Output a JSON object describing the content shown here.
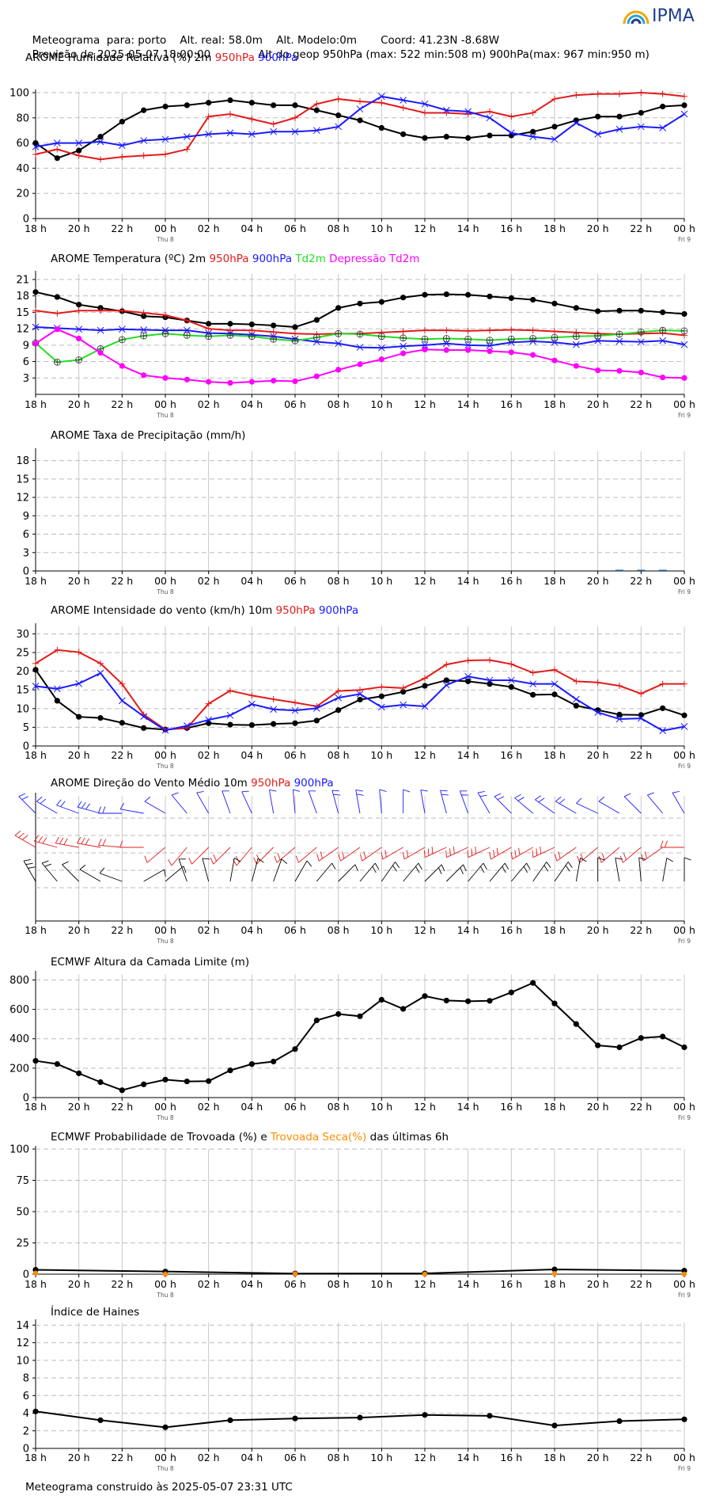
{
  "header": {
    "line1": {
      "label": "Meteograma  para: porto",
      "alt_real": "Alt. real: 58.0m",
      "alt_model": "Alt. Modelo:0m",
      "coord": "Coord: 41.23N -8.68W"
    },
    "line2": {
      "forecast": "Previsão de 2025-05-07 18:00:00",
      "geop": "Alt do geop 950hPa (max: 522 min:508 m) 900hPa(max: 967 min:950 m)"
    }
  },
  "logo": {
    "text": "IPMA"
  },
  "footer": "Meteograma construido às 2025-05-07 23:31 UTC",
  "colors": {
    "black": "#000000",
    "red": "#e41a1a",
    "blue": "#1a1aff",
    "green": "#22dd22",
    "magenta": "#ff00ff",
    "orange": "#ff8c00"
  },
  "time_axis": {
    "ticks": [
      "18 h",
      "20 h",
      "22 h",
      "00 h",
      "02 h",
      "04 h",
      "06 h",
      "08 h",
      "10 h",
      "12 h",
      "14 h",
      "16 h",
      "18 h",
      "20 h",
      "22 h",
      "00 h"
    ],
    "day_labels": [
      {
        "at": "00 h",
        "text": "Thu 8"
      },
      {
        "at": "00 h",
        "text": "Fri 9"
      }
    ],
    "start": "2025-05-07 18:00",
    "end": "2025-05-09 00:00"
  },
  "chart_data": [
    {
      "type": "line",
      "title_parts": [
        {
          "text": "AROME Humidade Relativa (%)  2m  ",
          "color": "#000000"
        },
        {
          "text": "950hPa",
          "color": "#e41a1a"
        },
        {
          "text": "  ",
          "color": "#000000"
        },
        {
          "text": "900hPa",
          "color": "#1a1aff"
        }
      ],
      "ylim": [
        0,
        100
      ],
      "yticks": [
        0,
        20,
        40,
        60,
        80,
        100
      ],
      "x_hours": [
        0,
        1,
        2,
        3,
        4,
        5,
        6,
        7,
        8,
        9,
        10,
        11,
        12,
        13,
        14,
        15,
        16,
        17,
        18,
        19,
        20,
        21,
        22,
        23,
        24,
        25,
        26,
        27,
        28,
        29,
        30
      ],
      "series": [
        {
          "name": "2m",
          "color": "#000000",
          "marker": "dot",
          "values": [
            60,
            48,
            54,
            65,
            77,
            86,
            89,
            90,
            92,
            94,
            92,
            90,
            90,
            86,
            82,
            78,
            72,
            67,
            64,
            65,
            64,
            66,
            66,
            69,
            73,
            78,
            81,
            81,
            84,
            89,
            90
          ]
        },
        {
          "name": "950hPa",
          "color": "#e41a1a",
          "marker": "plus",
          "values": [
            51,
            55,
            50,
            47,
            49,
            50,
            51,
            55,
            81,
            83,
            79,
            75,
            80,
            91,
            95,
            93,
            92,
            88,
            84,
            84,
            83,
            85,
            81,
            84,
            95,
            98,
            99,
            99,
            100,
            99,
            97
          ]
        },
        {
          "name": "900hPa",
          "color": "#1a1aff",
          "marker": "cross",
          "values": [
            57,
            60,
            60,
            61,
            58,
            62,
            63,
            65,
            67,
            68,
            67,
            69,
            69,
            70,
            73,
            87,
            97,
            94,
            91,
            86,
            85,
            80,
            68,
            65,
            63,
            76,
            67,
            71,
            73,
            72,
            83
          ]
        }
      ]
    },
    {
      "type": "line",
      "title_parts": [
        {
          "text": "AROME Temperatura (ºC)  2m  ",
          "color": "#000000"
        },
        {
          "text": "950hPa",
          "color": "#e41a1a"
        },
        {
          "text": "  ",
          "color": "#000000"
        },
        {
          "text": "900hPa",
          "color": "#1a1aff"
        },
        {
          "text": "  ",
          "color": "#000000"
        },
        {
          "text": "Td2m",
          "color": "#22dd22"
        },
        {
          "text": "  ",
          "color": "#000000"
        },
        {
          "text": "Depressão Td2m",
          "color": "#ff00ff"
        }
      ],
      "ylim": [
        0,
        22
      ],
      "yticks": [
        3,
        6,
        9,
        12,
        15,
        18,
        21
      ],
      "x_hours": [
        0,
        1,
        2,
        3,
        4,
        5,
        6,
        7,
        8,
        9,
        10,
        11,
        12,
        13,
        14,
        15,
        16,
        17,
        18,
        19,
        20,
        21,
        22,
        23,
        24,
        25,
        26,
        27,
        28,
        29,
        30
      ],
      "series": [
        {
          "name": "2m",
          "color": "#000000",
          "marker": "dot",
          "values": [
            18.7,
            17.8,
            16.4,
            15.8,
            15.2,
            14.3,
            14.1,
            13.5,
            12.9,
            12.9,
            12.8,
            12.6,
            12.3,
            13.6,
            15.8,
            16.6,
            16.9,
            17.7,
            18.2,
            18.3,
            18.2,
            17.9,
            17.6,
            17.3,
            16.6,
            15.8,
            15.2,
            15.3,
            15.3,
            15.0,
            14.7
          ]
        },
        {
          "name": "950hPa",
          "color": "#e41a1a",
          "marker": "plus",
          "values": [
            15.3,
            14.8,
            15.3,
            15.3,
            15.3,
            14.9,
            14.5,
            13.5,
            12.0,
            11.7,
            11.7,
            11.4,
            11.1,
            11.0,
            11.1,
            11.1,
            11.3,
            11.5,
            11.7,
            11.7,
            11.6,
            11.7,
            11.8,
            11.7,
            11.5,
            11.3,
            11.1,
            11.0,
            11.1,
            11.2,
            10.8
          ]
        },
        {
          "name": "900hPa",
          "color": "#1a1aff",
          "marker": "cross",
          "values": [
            12.3,
            12.1,
            11.9,
            11.7,
            11.9,
            11.8,
            11.7,
            11.7,
            11.2,
            11.1,
            10.9,
            10.6,
            10.1,
            9.6,
            9.3,
            8.6,
            8.5,
            8.8,
            9.0,
            9.3,
            9.0,
            8.9,
            9.5,
            9.7,
            9.5,
            9.1,
            9.8,
            9.7,
            9.6,
            9.8,
            9.1
          ]
        },
        {
          "name": "Td2m",
          "color": "#22dd22",
          "marker": "circleplus",
          "values": [
            9.4,
            5.9,
            6.3,
            8.3,
            10.0,
            10.7,
            11.1,
            10.8,
            10.6,
            10.8,
            10.6,
            10.1,
            9.8,
            10.4,
            11.1,
            11.0,
            10.6,
            10.3,
            10.1,
            10.2,
            10.1,
            9.9,
            10.1,
            10.2,
            10.4,
            10.6,
            10.7,
            11.0,
            11.4,
            11.7,
            11.6
          ]
        },
        {
          "name": "Depressão Td2m",
          "color": "#ff00ff",
          "marker": "dot",
          "values": [
            9.3,
            11.9,
            10.2,
            7.6,
            5.2,
            3.5,
            3.0,
            2.7,
            2.3,
            2.1,
            2.3,
            2.5,
            2.4,
            3.3,
            4.5,
            5.5,
            6.4,
            7.5,
            8.2,
            8.1,
            8.1,
            7.9,
            7.7,
            7.2,
            6.2,
            5.2,
            4.4,
            4.3,
            4.0,
            3.1,
            3.0
          ]
        }
      ]
    },
    {
      "type": "bar",
      "title_parts": [
        {
          "text": "AROME Taxa de Precipitação (mm/h)",
          "color": "#000000"
        }
      ],
      "ylim": [
        0,
        19.5
      ],
      "yticks": [
        0,
        3,
        6,
        9,
        12,
        15,
        18
      ],
      "x_hours": [
        27,
        28,
        29
      ],
      "values": [
        0.05,
        0.15,
        0.08
      ],
      "color": "#1f5fa0"
    },
    {
      "type": "line",
      "title_parts": [
        {
          "text": "AROME Intensidade do vento (km/h)   10m  ",
          "color": "#000000"
        },
        {
          "text": "950hPa",
          "color": "#e41a1a"
        },
        {
          "text": "  ",
          "color": "#000000"
        },
        {
          "text": "900hPa",
          "color": "#1a1aff"
        }
      ],
      "ylim": [
        0,
        32
      ],
      "yticks": [
        0,
        5,
        10,
        15,
        20,
        25,
        30
      ],
      "x_hours": [
        0,
        1,
        2,
        3,
        4,
        5,
        6,
        7,
        8,
        9,
        10,
        11,
        12,
        13,
        14,
        15,
        16,
        17,
        18,
        19,
        20,
        21,
        22,
        23,
        24,
        25,
        26,
        27,
        28,
        29,
        30
      ],
      "series": [
        {
          "name": "10m",
          "color": "#000000",
          "marker": "dot",
          "values": [
            20.4,
            12.1,
            7.8,
            7.5,
            6.2,
            4.8,
            4.4,
            4.8,
            6.1,
            5.7,
            5.6,
            5.9,
            6.1,
            6.8,
            9.6,
            12.4,
            13.3,
            14.5,
            16.1,
            17.6,
            17.3,
            16.6,
            15.8,
            13.7,
            13.8,
            10.8,
            9.6,
            8.4,
            8.3,
            10.1,
            8.2
          ]
        },
        {
          "name": "950hPa",
          "color": "#e41a1a",
          "marker": "plus",
          "values": [
            22.1,
            25.7,
            25.1,
            22.1,
            16.6,
            8.4,
            4.4,
            4.8,
            11.3,
            14.8,
            13.5,
            12.5,
            11.6,
            10.6,
            14.7,
            15.0,
            15.8,
            15.5,
            18.1,
            21.8,
            22.9,
            23.0,
            21.9,
            19.6,
            20.4,
            17.3,
            17.0,
            16.1,
            14.0,
            16.6,
            16.6
          ]
        },
        {
          "name": "900hPa",
          "color": "#1a1aff",
          "marker": "cross",
          "values": [
            16.0,
            15.3,
            16.7,
            19.5,
            12.1,
            7.9,
            4.2,
            5.4,
            7.0,
            8.2,
            11.2,
            9.8,
            9.5,
            10.1,
            12.9,
            13.9,
            10.4,
            11.0,
            10.6,
            16.3,
            18.6,
            17.6,
            17.6,
            16.6,
            16.6,
            12.5,
            9.0,
            7.2,
            7.4,
            4.1,
            5.2
          ]
        }
      ]
    },
    {
      "type": "wind_barbs",
      "title_parts": [
        {
          "text": "AROME Direção do Vento Médio   10m  ",
          "color": "#000000"
        },
        {
          "text": "950hPa",
          "color": "#e41a1a"
        },
        {
          "text": "  ",
          "color": "#000000"
        },
        {
          "text": "900hPa",
          "color": "#1a1aff"
        }
      ],
      "levels": [
        {
          "name": "900hPa",
          "color": "#1a1aff",
          "dirs": [
            315,
            300,
            290,
            285,
            270,
            280,
            300,
            320,
            330,
            340,
            335,
            350,
            355,
            340,
            345,
            350,
            355,
            0,
            350,
            345,
            340,
            330,
            315,
            310,
            305,
            300,
            295,
            300,
            315,
            320,
            330
          ],
          "values": [
            16,
            15,
            17,
            20,
            12,
            8,
            4,
            5,
            7,
            8,
            11,
            10,
            10,
            10,
            13,
            14,
            10,
            11,
            11,
            16,
            19,
            18,
            18,
            17,
            17,
            13,
            9,
            7,
            7,
            4,
            5
          ]
        },
        {
          "name": "950hPa",
          "color": "#e41a1a",
          "dirs": [
            300,
            285,
            280,
            280,
            275,
            270,
            230,
            220,
            225,
            225,
            220,
            225,
            230,
            230,
            235,
            235,
            235,
            240,
            240,
            245,
            245,
            245,
            240,
            240,
            245,
            235,
            230,
            230,
            230,
            235,
            270
          ],
          "values": [
            22,
            26,
            25,
            22,
            17,
            8,
            4,
            5,
            11,
            15,
            14,
            13,
            12,
            11,
            15,
            15,
            16,
            16,
            18,
            22,
            23,
            23,
            22,
            20,
            20,
            17,
            17,
            16,
            14,
            17,
            17
          ]
        },
        {
          "name": "10m",
          "color": "#000000",
          "dirs": [
            330,
            320,
            315,
            300,
            290,
            60,
            50,
            340,
            345,
            10,
            15,
            20,
            30,
            40,
            45,
            40,
            35,
            40,
            45,
            45,
            40,
            40,
            40,
            35,
            35,
            10,
            0,
            350,
            355,
            10,
            0
          ],
          "values": [
            20,
            12,
            8,
            8,
            6,
            5,
            4,
            5,
            6,
            6,
            6,
            6,
            6,
            7,
            10,
            12,
            13,
            15,
            16,
            18,
            17,
            17,
            16,
            14,
            14,
            11,
            10,
            8,
            8,
            10,
            8
          ]
        }
      ]
    },
    {
      "type": "line",
      "title_parts": [
        {
          "text": "ECMWF Altura da Camada Limite (m)",
          "color": "#000000"
        }
      ],
      "ylim": [
        0,
        840
      ],
      "yticks": [
        0,
        200,
        400,
        600,
        800
      ],
      "x_hours": [
        0,
        1,
        2,
        3,
        4,
        5,
        6,
        7,
        8,
        9,
        10,
        11,
        12,
        13,
        14,
        15,
        16,
        17,
        18,
        19,
        20,
        21,
        22,
        23,
        24,
        25,
        26,
        27,
        28,
        29,
        30
      ],
      "series": [
        {
          "name": "",
          "color": "#000000",
          "marker": "dot",
          "values": [
            250,
            228,
            165,
            105,
            50,
            90,
            122,
            110,
            112,
            185,
            228,
            245,
            330,
            525,
            568,
            553,
            665,
            603,
            690,
            660,
            655,
            658,
            715,
            780,
            640,
            500,
            355,
            342,
            405,
            415,
            342
          ]
        }
      ]
    },
    {
      "type": "line",
      "title_parts": [
        {
          "text": "ECMWF Probabilidade de Trovoada (%) e  ",
          "color": "#000000"
        },
        {
          "text": "Trovoada Seca(%)",
          "color": "#ff8c00"
        },
        {
          "text": "  das últimas 6h",
          "color": "#000000"
        }
      ],
      "ylim": [
        0,
        100
      ],
      "yticks": [
        0,
        25,
        50,
        75,
        100
      ],
      "x_hours": [
        0,
        6,
        12,
        18,
        24,
        30
      ],
      "series": [
        {
          "name": "",
          "color": "#000000",
          "marker": "dot",
          "values": [
            3.5,
            2.1,
            0.5,
            0.6,
            3.8,
            2.8
          ]
        },
        {
          "name": "",
          "color": "#ff8c00",
          "marker": "dot_only",
          "values": [
            0.8,
            0,
            0.3,
            0,
            0.5,
            0
          ]
        }
      ]
    },
    {
      "type": "line",
      "title_parts": [
        {
          "text": "Índice de Haines",
          "color": "#000000"
        }
      ],
      "ylim": [
        0,
        14.3
      ],
      "yticks": [
        0,
        2,
        4,
        6,
        8,
        10,
        12,
        14
      ],
      "x_hours": [
        0,
        3,
        6,
        9,
        12,
        15,
        18,
        21,
        24,
        27,
        30
      ],
      "series": [
        {
          "name": "",
          "color": "#000000",
          "marker": "dot",
          "values": [
            4.2,
            3.2,
            2.4,
            3.2,
            3.4,
            3.5,
            3.8,
            3.7,
            2.6,
            3.1,
            3.3
          ]
        }
      ]
    }
  ]
}
